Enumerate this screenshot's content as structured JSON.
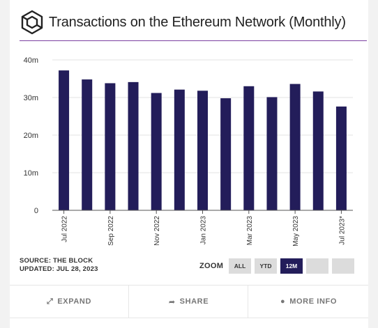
{
  "title": "Transactions on the Ethereum Network (Monthly)",
  "source_line": "SOURCE: THE BLOCK",
  "updated_line": "UPDATED: JUL 28, 2023",
  "zoom": {
    "label": "ZOOM",
    "buttons": [
      {
        "label": "ALL",
        "active": false
      },
      {
        "label": "YTD",
        "active": false
      },
      {
        "label": "12M",
        "active": true
      },
      {
        "label": "",
        "active": false
      },
      {
        "label": "",
        "active": false
      }
    ]
  },
  "footer": {
    "expand": "EXPAND",
    "share": "SHARE",
    "more_info": "MORE INFO"
  },
  "colors": {
    "bar": "#231d5a",
    "accent_rule": "#7b3fa0",
    "active_button": "#231d5a"
  },
  "icons": {
    "logo": "cube-logo-icon",
    "expand": "expand-arrows-icon",
    "share": "share-arrow-icon",
    "more_info": "info-circle-icon"
  },
  "chart_data": {
    "type": "bar",
    "categories": [
      "Jul 2022",
      "Aug 2022",
      "Sep 2022",
      "Oct 2022",
      "Nov 2022",
      "Dec 2022",
      "Jan 2023",
      "Feb 2023",
      "Mar 2023",
      "Apr 2023",
      "May 2023",
      "Jun 2023",
      "Jul 2023*"
    ],
    "tick_labels": [
      "Jul 2022",
      "",
      "Sep 2022",
      "",
      "Nov 2022",
      "",
      "Jan 2023",
      "",
      "Mar 2023",
      "",
      "May 2023",
      "",
      "Jul 2023*"
    ],
    "values": [
      37.2,
      34.8,
      33.8,
      34.1,
      31.2,
      32.1,
      31.8,
      29.8,
      33.0,
      30.1,
      33.6,
      31.6,
      27.6
    ],
    "ylim": [
      0,
      40
    ],
    "yticks": [
      0,
      10,
      20,
      30,
      40
    ],
    "ytick_labels": [
      "0",
      "10m",
      "20m",
      "30m",
      "40m"
    ],
    "grid": true,
    "legend": "none"
  }
}
